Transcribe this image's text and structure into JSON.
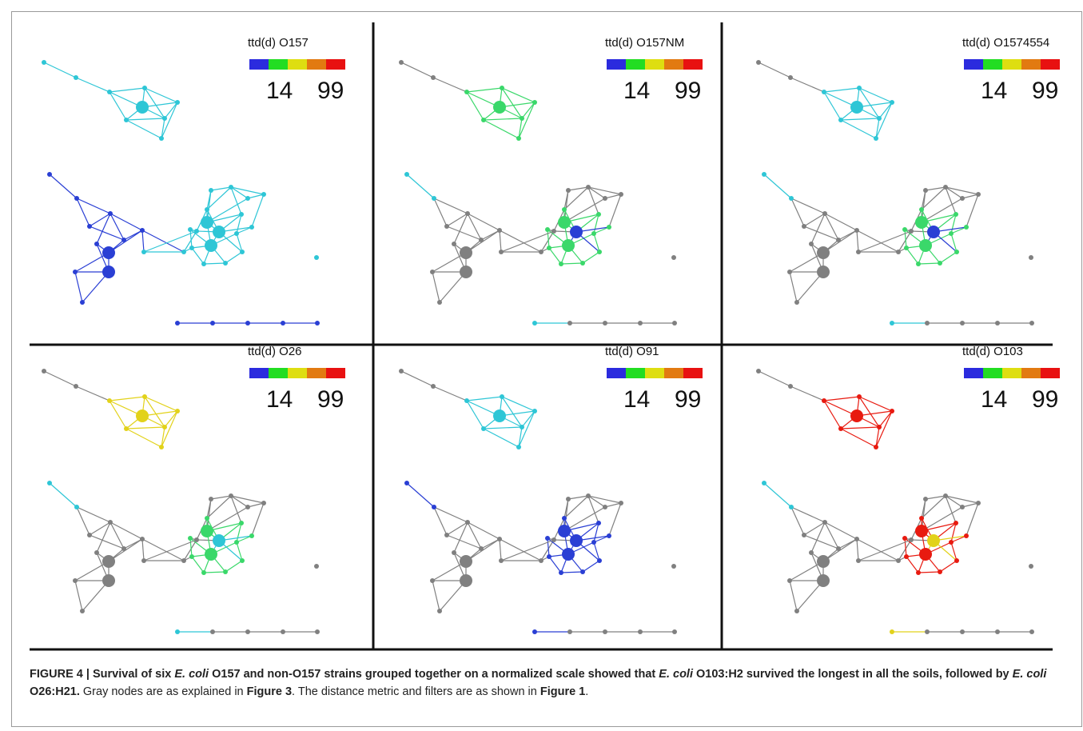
{
  "legend_scale": {
    "min": "14",
    "max": "99",
    "colors": [
      "#2b2bde",
      "#22dd22",
      "#dede11",
      "#e27a11",
      "#e81111"
    ]
  },
  "panels": [
    {
      "title": "ttd(d) O157"
    },
    {
      "title": "ttd(d) O157NM"
    },
    {
      "title": "ttd(d) O1574554"
    },
    {
      "title": "ttd(d) O26"
    },
    {
      "title": "ttd(d) O91"
    },
    {
      "title": "ttd(d) O103"
    }
  ],
  "caption": {
    "label": "FIGURE 4 | ",
    "bold_1": "Survival of six ",
    "ital_1": "E. coli",
    "bold_2": " O157 and non-O157 strains grouped together on a normalized scale showed that ",
    "ital_2": "E. coli",
    "bold_3": " O103:H2 survived the longest in all the soils, followed by ",
    "ital_3": "E. coli",
    "bold_4": " O26:H21.",
    "text_1": " Gray nodes are as explained in ",
    "ref_1": "Figure 3",
    "text_2": ". The distance metric and filters are as shown in ",
    "ref_2": "Figure 1",
    "text_3": "."
  },
  "node_colors": {
    "gray": "#808080",
    "cyan": "#2ec6d6",
    "blue": "#2a3fd4",
    "green": "#3ad86a",
    "yellow": "#e2d21a",
    "red": "#e81a10",
    "orange": "#e07a14"
  }
}
